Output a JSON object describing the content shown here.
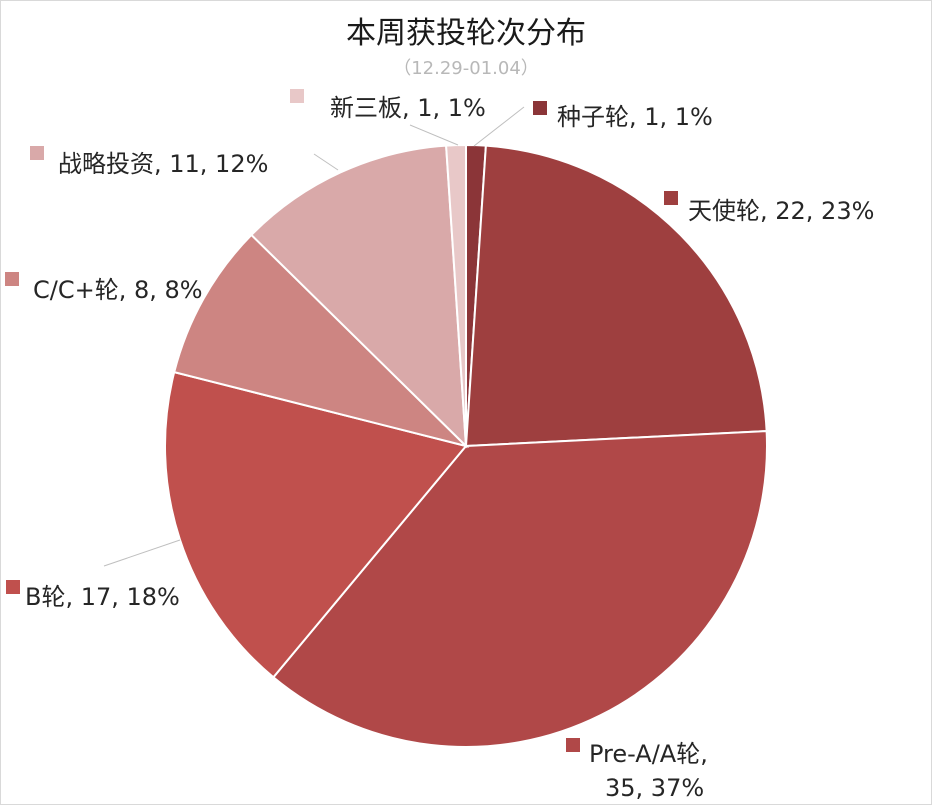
{
  "title": "本周获投轮次分布",
  "subtitle": "（12.29-01.04）",
  "chart_data": {
    "type": "pie",
    "title": "本周获投轮次分布",
    "subtitle": "（12.29-01.04）",
    "categories": [
      "种子轮",
      "天使轮",
      "Pre-A/A轮",
      "B轮",
      "C/C+轮",
      "战略投资",
      "新三板"
    ],
    "values": [
      1,
      22,
      35,
      17,
      8,
      11,
      1
    ],
    "percents": [
      "1%",
      "23%",
      "37%",
      "18%",
      "8%",
      "12%",
      "1%"
    ],
    "colors": [
      "#8b3538",
      "#9e3f3f",
      "#b04848",
      "#c0504d",
      "#cd8582",
      "#d9a9a9",
      "#e8c8c8"
    ],
    "data_labels": [
      "种子轮, 1, 1%",
      "天使轮, 22, 23%",
      "Pre-A/A轮,",
      "B轮, 17, 18%",
      "C/C+轮, 8, 8%",
      "战略投资, 11, 12%",
      "新三板, 1, 1%"
    ],
    "data_labels_line2": [
      "",
      "",
      "35, 37%",
      "",
      "",
      "",
      ""
    ],
    "legend": "none"
  }
}
